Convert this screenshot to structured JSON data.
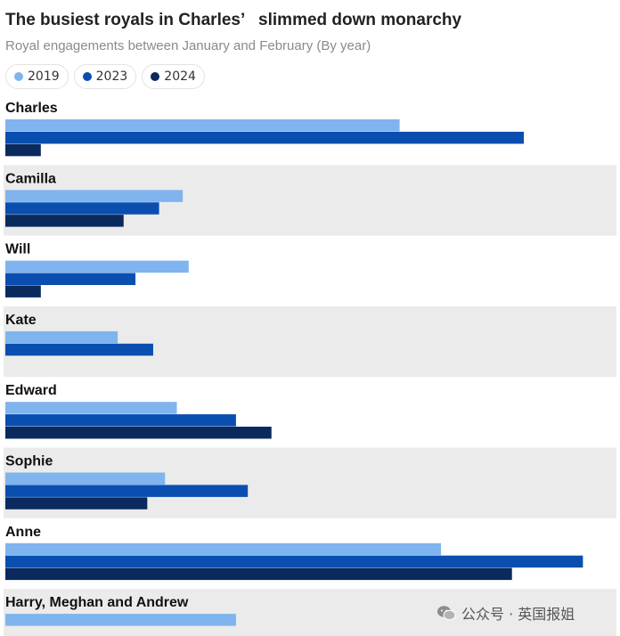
{
  "chart_data": {
    "type": "bar",
    "orientation": "horizontal",
    "title": "The busiest royals in Charles’   slimmed down monarchy",
    "subtitle": "Royal engagements between January and February (By year)",
    "categories": [
      "Charles",
      "Camilla",
      "Will",
      "Kate",
      "Edward",
      "Sophie",
      "Anne",
      "Harry, Meghan and Andrew"
    ],
    "series": [
      {
        "name": "2019",
        "color": "#7fb4ee",
        "values": [
          100,
          45,
          46.5,
          28.5,
          43.5,
          40.5,
          110.5,
          58.5
        ]
      },
      {
        "name": "2023",
        "color": "#0a4eb0",
        "values": [
          131.5,
          39,
          33,
          37.5,
          58.5,
          61.5,
          146.5,
          null
        ]
      },
      {
        "name": "2024",
        "color": "#0a2a5e",
        "values": [
          9,
          30,
          9,
          null,
          67.5,
          36,
          128.5,
          null
        ]
      }
    ],
    "xlim": [
      0,
      155
    ],
    "grid": false,
    "legend_position": "top-left",
    "row_band_color": "#ebebeb"
  },
  "watermark": {
    "text": "公众号 · 英国报姐",
    "icon": "wechat-icon"
  }
}
